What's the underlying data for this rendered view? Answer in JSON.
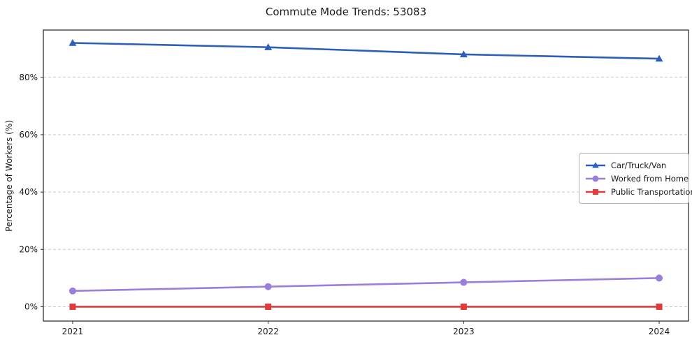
{
  "title": "Commute Mode Trends: 53083",
  "chart_data": {
    "type": "line",
    "title": "Commute Mode Trends: 53083",
    "xlabel": "",
    "ylabel": "Percentage of Workers (%)",
    "x": [
      2021,
      2022,
      2023,
      2024
    ],
    "xtick_labels": [
      "2021",
      "2022",
      "2023",
      "2024"
    ],
    "yticks": [
      0,
      20,
      40,
      60,
      80
    ],
    "ytick_labels": [
      "0%",
      "20%",
      "40%",
      "60%",
      "80%"
    ],
    "xlim": [
      2020.85,
      2024.15
    ],
    "ylim": [
      -5,
      96.5
    ],
    "grid": true,
    "grid_style": "dashed",
    "legend_position": "center right",
    "series": [
      {
        "name": "Car/Truck/Van",
        "values": [
          92,
          90.5,
          88,
          86.5
        ],
        "color": "#2d5fb8",
        "marker": "triangle"
      },
      {
        "name": "Worked from Home",
        "values": [
          5.5,
          7,
          8.5,
          10
        ],
        "color": "#9b7ddb",
        "marker": "circle"
      },
      {
        "name": "Public Transportation",
        "values": [
          0,
          0,
          0,
          0
        ],
        "color": "#e03a3a",
        "marker": "square"
      }
    ]
  }
}
